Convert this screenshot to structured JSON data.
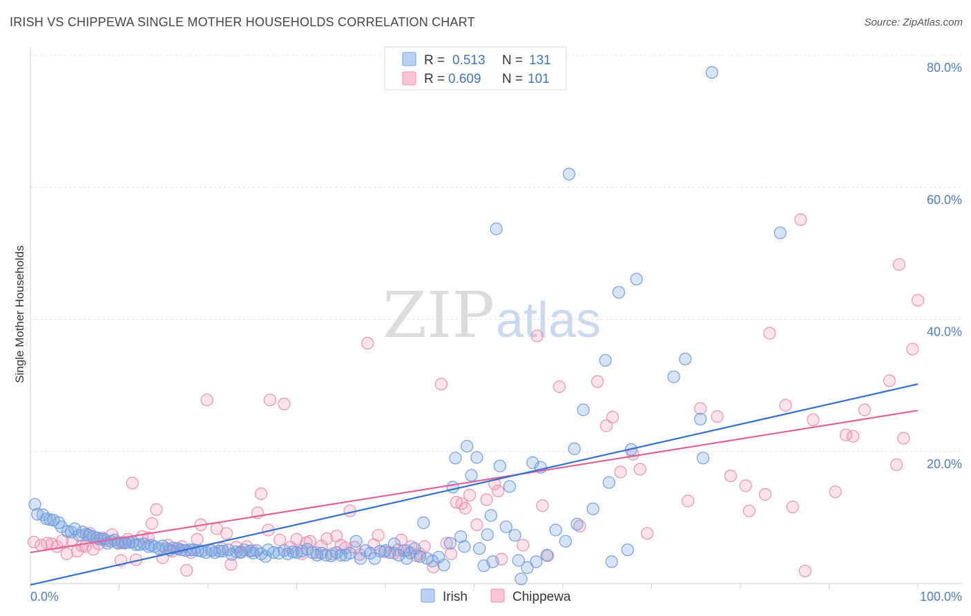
{
  "header": {
    "title": "IRISH VS CHIPPEWA SINGLE MOTHER HOUSEHOLDS CORRELATION CHART",
    "source": "Source: ZipAtlas.com"
  },
  "watermark": {
    "zip": "ZIP",
    "atlas": "atlas"
  },
  "legend_box": {
    "rows": [
      {
        "r_label": "R =",
        "r_value": "0.513",
        "n_label": "N =",
        "n_value": "131",
        "color": "#6f9fe0"
      },
      {
        "r_label": "R =",
        "r_value": "0.609",
        "n_label": "N =",
        "n_value": "101",
        "color": "#ef8fb0"
      }
    ]
  },
  "bottom_legend": {
    "irish": "Irish",
    "chippewa": "Chippewa"
  },
  "chart_data": {
    "type": "scatter",
    "title": "IRISH VS CHIPPEWA SINGLE MOTHER HOUSEHOLDS CORRELATION CHART",
    "xlabel": "",
    "ylabel": "Single Mother Households",
    "xlim": [
      0,
      100
    ],
    "ylim": [
      0,
      80
    ],
    "x_tick_labels": [
      "0.0%",
      "100.0%"
    ],
    "y_tick_labels": [
      "20.0%",
      "40.0%",
      "60.0%",
      "80.0%"
    ],
    "y_ticks": [
      20,
      40,
      60,
      80
    ],
    "grid": true,
    "legend_position": "bottom-center",
    "series": [
      {
        "name": "Irish",
        "color": "#6f9fe0",
        "r": 0.513,
        "n": 131,
        "trend": [
          [
            0,
            -0.2
          ],
          [
            100,
            30.2
          ]
        ],
        "points": [
          [
            0.5,
            12
          ],
          [
            0.8,
            10.5
          ],
          [
            1.4,
            10.4
          ],
          [
            1.8,
            9.8
          ],
          [
            2.2,
            9.7
          ],
          [
            2.6,
            9.6
          ],
          [
            3.2,
            9.2
          ],
          [
            3.5,
            8.6
          ],
          [
            4.2,
            7.9
          ],
          [
            4.6,
            7.8
          ],
          [
            5,
            8.3
          ],
          [
            5.5,
            7.3
          ],
          [
            5.9,
            7.8
          ],
          [
            6.3,
            7.5
          ],
          [
            6.6,
            7.3
          ],
          [
            7.1,
            7.1
          ],
          [
            7.5,
            6.9
          ],
          [
            7.9,
            6.7
          ],
          [
            8.3,
            6.7
          ],
          [
            8.7,
            6.1
          ],
          [
            9.1,
            6.4
          ],
          [
            9.5,
            6.6
          ],
          [
            9.9,
            6.1
          ],
          [
            10.3,
            6.2
          ],
          [
            10.7,
            6.2
          ],
          [
            11.1,
            6.2
          ],
          [
            11.5,
            6.3
          ],
          [
            11.9,
            5.9
          ],
          [
            12.3,
            5.9
          ],
          [
            12.8,
            6
          ],
          [
            13.3,
            5.6
          ],
          [
            13.6,
            5.8
          ],
          [
            14,
            5.6
          ],
          [
            14.5,
            5.3
          ],
          [
            14.9,
            5.7
          ],
          [
            15.3,
            5.3
          ],
          [
            15.7,
            5.1
          ],
          [
            16.1,
            5.4
          ],
          [
            16.6,
            5.3
          ],
          [
            17,
            5.1
          ],
          [
            17.5,
            5
          ],
          [
            18,
            5.1
          ],
          [
            18.4,
            5.1
          ],
          [
            18.9,
            5
          ],
          [
            19.3,
            4.9
          ],
          [
            19.8,
            4.7
          ],
          [
            20.4,
            5
          ],
          [
            20.8,
            4.7
          ],
          [
            21.3,
            4.9
          ],
          [
            21.7,
            4.9
          ],
          [
            22.3,
            5.1
          ],
          [
            22.7,
            4.4
          ],
          [
            23.2,
            4.8
          ],
          [
            23.7,
            4.7
          ],
          [
            24.1,
            5.1
          ],
          [
            24.7,
            4.9
          ],
          [
            25.1,
            4.6
          ],
          [
            25.5,
            5
          ],
          [
            26,
            4.5
          ],
          [
            26.5,
            4.1
          ],
          [
            26.8,
            5.1
          ],
          [
            27.4,
            4.7
          ],
          [
            28,
            4.6
          ],
          [
            28.6,
            5
          ],
          [
            29,
            4.5
          ],
          [
            29.6,
            4.8
          ],
          [
            30,
            4.7
          ],
          [
            30.6,
            4.9
          ],
          [
            31.2,
            5.2
          ],
          [
            31.8,
            4.7
          ],
          [
            32.3,
            4.3
          ],
          [
            32.8,
            4.6
          ],
          [
            33.3,
            4.3
          ],
          [
            33.9,
            4.2
          ],
          [
            34.5,
            4.7
          ],
          [
            35,
            4.3
          ],
          [
            35.5,
            4.3
          ],
          [
            36,
            4.6
          ],
          [
            36.7,
            6.4
          ],
          [
            37.2,
            3.8
          ],
          [
            37.8,
            5
          ],
          [
            38.3,
            4.6
          ],
          [
            38.8,
            3.8
          ],
          [
            39.4,
            4.9
          ],
          [
            40,
            5
          ],
          [
            40.5,
            4.7
          ],
          [
            41,
            6
          ],
          [
            41.5,
            4.3
          ],
          [
            42.1,
            5
          ],
          [
            42.4,
            3.8
          ],
          [
            42.8,
            4.6
          ],
          [
            43.3,
            5.3
          ],
          [
            43.9,
            4.1
          ],
          [
            44.3,
            9.2
          ],
          [
            44.7,
            3.8
          ],
          [
            45.3,
            3.4
          ],
          [
            46,
            4
          ],
          [
            46.6,
            2.8
          ],
          [
            47.3,
            6.1
          ],
          [
            47.6,
            14.6
          ],
          [
            47.9,
            19
          ],
          [
            48.5,
            7.1
          ],
          [
            48.9,
            5.6
          ],
          [
            49.2,
            20.8
          ],
          [
            49.7,
            16.4
          ],
          [
            50.3,
            19.1
          ],
          [
            50.6,
            5.3
          ],
          [
            51.1,
            2.7
          ],
          [
            51.5,
            7.4
          ],
          [
            51.9,
            10.3
          ],
          [
            52.1,
            3.3
          ],
          [
            52.5,
            53.7
          ],
          [
            52.9,
            17.8
          ],
          [
            53.6,
            8.6
          ],
          [
            54,
            14.7
          ],
          [
            54.6,
            7.3
          ],
          [
            55,
            3.5
          ],
          [
            55.3,
            0.7
          ],
          [
            56,
            2.4
          ],
          [
            56.6,
            18.3
          ],
          [
            57,
            3.3
          ],
          [
            57.5,
            17.6
          ],
          [
            58.2,
            4.3
          ],
          [
            59.2,
            8.1
          ],
          [
            60.3,
            6.4
          ],
          [
            60.7,
            62
          ],
          [
            61.3,
            20.4
          ],
          [
            61.6,
            9
          ],
          [
            62.3,
            26.3
          ],
          [
            63.4,
            11.3
          ],
          [
            64.8,
            33.8
          ],
          [
            65.2,
            15.3
          ],
          [
            65.5,
            3.3
          ],
          [
            66.3,
            44.1
          ],
          [
            67.3,
            5.1
          ],
          [
            67.7,
            20.3
          ],
          [
            68.3,
            46.1
          ],
          [
            72.5,
            31.3
          ],
          [
            73.8,
            34
          ],
          [
            75.5,
            24.9
          ],
          [
            75.8,
            19
          ],
          [
            76.8,
            77.4
          ],
          [
            84.5,
            53.1
          ]
        ]
      },
      {
        "name": "Chippewa",
        "color": "#ef8fb0",
        "r": 0.609,
        "n": 101,
        "trend": [
          [
            0,
            4.7
          ],
          [
            100,
            26.2
          ]
        ],
        "points": [
          [
            0.4,
            6.3
          ],
          [
            1.2,
            5.8
          ],
          [
            1.9,
            6.1
          ],
          [
            2.4,
            6
          ],
          [
            3,
            5.6
          ],
          [
            3.6,
            6.5
          ],
          [
            4.1,
            4.5
          ],
          [
            4.7,
            6.5
          ],
          [
            5.3,
            4.9
          ],
          [
            5.8,
            5.7
          ],
          [
            6.2,
            5.6
          ],
          [
            6.7,
            7.6
          ],
          [
            7.1,
            5.2
          ],
          [
            7.7,
            6
          ],
          [
            8.1,
            6.9
          ],
          [
            8.6,
            6.5
          ],
          [
            9.2,
            7.4
          ],
          [
            9.8,
            6.2
          ],
          [
            10.2,
            3.5
          ],
          [
            10.6,
            6.1
          ],
          [
            11,
            6.7
          ],
          [
            11.5,
            15.2
          ],
          [
            11.9,
            3.6
          ],
          [
            12.6,
            7.1
          ],
          [
            13.3,
            6.9
          ],
          [
            13.7,
            9.1
          ],
          [
            14.2,
            11.2
          ],
          [
            14.9,
            3.9
          ],
          [
            15.5,
            5.8
          ],
          [
            16,
            4.9
          ],
          [
            16.6,
            5.3
          ],
          [
            17.1,
            5.6
          ],
          [
            17.6,
            2
          ],
          [
            18.1,
            4.7
          ],
          [
            18.8,
            6.7
          ],
          [
            19.2,
            8.9
          ],
          [
            19.9,
            27.8
          ],
          [
            20.4,
            5
          ],
          [
            21,
            8.3
          ],
          [
            21.6,
            5.3
          ],
          [
            22.1,
            7.6
          ],
          [
            22.6,
            2.9
          ],
          [
            23.2,
            5.5
          ],
          [
            23.7,
            4.8
          ],
          [
            24.4,
            5.6
          ],
          [
            25,
            5
          ],
          [
            25.6,
            10.7
          ],
          [
            26,
            13.6
          ],
          [
            26.8,
            8.1
          ],
          [
            27,
            27.8
          ],
          [
            28.1,
            6.6
          ],
          [
            28.6,
            27.2
          ],
          [
            29.3,
            5.5
          ],
          [
            30,
            6.7
          ],
          [
            30.6,
            4.5
          ],
          [
            31.1,
            6.2
          ],
          [
            31.5,
            6.4
          ],
          [
            32.2,
            4.7
          ],
          [
            32.8,
            5.7
          ],
          [
            33.4,
            6.8
          ],
          [
            34,
            4.5
          ],
          [
            34.5,
            7.2
          ],
          [
            35,
            5.8
          ],
          [
            35.5,
            5.4
          ],
          [
            36,
            11
          ],
          [
            36.5,
            5.5
          ],
          [
            37.1,
            4.4
          ],
          [
            38,
            36.4
          ],
          [
            38.7,
            5.9
          ],
          [
            39.2,
            7.3
          ],
          [
            39.9,
            4.8
          ],
          [
            41,
            4.6
          ],
          [
            41.4,
            5.1
          ],
          [
            41.8,
            6.6
          ],
          [
            42.4,
            5
          ],
          [
            42.9,
            5.6
          ],
          [
            43.5,
            4.2
          ],
          [
            43.9,
            4.5
          ],
          [
            44.4,
            5.6
          ],
          [
            45.4,
            2.5
          ],
          [
            46.3,
            30.2
          ],
          [
            46.9,
            6.1
          ],
          [
            47.4,
            4.5
          ],
          [
            48,
            12.3
          ],
          [
            48.6,
            12.1
          ],
          [
            49,
            11.4
          ],
          [
            49.5,
            13.4
          ],
          [
            50.3,
            8.9
          ],
          [
            51.4,
            12.7
          ],
          [
            52.3,
            15.1
          ],
          [
            52.7,
            14
          ],
          [
            53.1,
            3.7
          ],
          [
            55.5,
            5.8
          ],
          [
            57.1,
            37.5
          ],
          [
            57.7,
            11.8
          ],
          [
            58.3,
            4.2
          ],
          [
            59.6,
            29.8
          ],
          [
            61.9,
            8.7
          ],
          [
            63.9,
            30.6
          ],
          [
            64.9,
            23.9
          ],
          [
            65.6,
            25.2
          ],
          [
            66.5,
            16.9
          ],
          [
            67.9,
            19.6
          ],
          [
            68.7,
            17.3
          ],
          [
            69.5,
            7.6
          ],
          [
            74.1,
            12.5
          ],
          [
            75.5,
            26.5
          ],
          [
            77.4,
            25.3
          ],
          [
            78.9,
            16.3
          ],
          [
            80.6,
            14.8
          ],
          [
            81,
            11
          ],
          [
            82.8,
            13.5
          ],
          [
            83.3,
            37.9
          ],
          [
            85.1,
            27
          ],
          [
            85.9,
            11.6
          ],
          [
            86.8,
            55.1
          ],
          [
            87.3,
            1.9
          ],
          [
            88.2,
            24.8
          ],
          [
            90.7,
            13.9
          ],
          [
            91.9,
            22.5
          ],
          [
            92.7,
            22.3
          ],
          [
            94,
            26.3
          ],
          [
            96.8,
            30.7
          ],
          [
            97.6,
            18
          ],
          [
            97.9,
            48.3
          ],
          [
            98.4,
            22
          ],
          [
            99.4,
            35.5
          ],
          [
            100,
            42.9
          ]
        ]
      }
    ]
  }
}
